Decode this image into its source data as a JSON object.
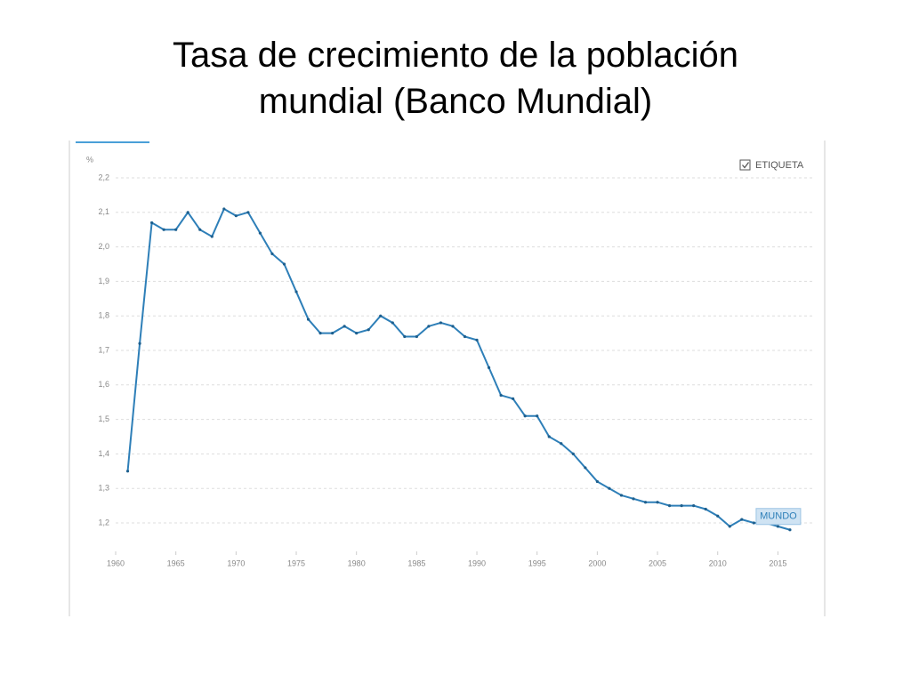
{
  "chart_data": {
    "type": "line",
    "title": "Tasa de crecimiento de la población mundial (Banco Mundial)",
    "y_unit": "%",
    "toggle_label": "ETIQUETA",
    "x": [
      1961,
      1962,
      1963,
      1964,
      1965,
      1966,
      1967,
      1968,
      1969,
      1970,
      1971,
      1972,
      1973,
      1974,
      1975,
      1976,
      1977,
      1978,
      1979,
      1980,
      1981,
      1982,
      1983,
      1984,
      1985,
      1986,
      1987,
      1988,
      1989,
      1990,
      1991,
      1992,
      1993,
      1994,
      1995,
      1996,
      1997,
      1998,
      1999,
      2000,
      2001,
      2002,
      2003,
      2004,
      2005,
      2006,
      2007,
      2008,
      2009,
      2010,
      2011,
      2012,
      2013,
      2014,
      2015,
      2016
    ],
    "series": [
      {
        "name": "MUNDO",
        "color": "#2e7fb8",
        "values": [
          1.35,
          1.72,
          2.07,
          2.05,
          2.05,
          2.1,
          2.05,
          2.03,
          2.11,
          2.09,
          2.1,
          2.04,
          1.98,
          1.95,
          1.87,
          1.79,
          1.75,
          1.75,
          1.77,
          1.75,
          1.76,
          1.8,
          1.78,
          1.74,
          1.74,
          1.77,
          1.78,
          1.77,
          1.74,
          1.73,
          1.65,
          1.57,
          1.56,
          1.51,
          1.51,
          1.45,
          1.43,
          1.4,
          1.36,
          1.32,
          1.3,
          1.28,
          1.27,
          1.26,
          1.26,
          1.25,
          1.25,
          1.25,
          1.24,
          1.22,
          1.19,
          1.21,
          1.2,
          1.2,
          1.19,
          1.18
        ]
      }
    ],
    "xlim": [
      1960,
      2018
    ],
    "xticks": [
      1960,
      1965,
      1970,
      1975,
      1980,
      1985,
      1990,
      1995,
      2000,
      2005,
      2010,
      2015
    ],
    "ylim": [
      1.12,
      2.2
    ],
    "yticks": [
      {
        "value": 1.2,
        "label": "1,2"
      },
      {
        "value": 1.3,
        "label": "1,3"
      },
      {
        "value": 1.4,
        "label": "1,4"
      },
      {
        "value": 1.5,
        "label": "1,5"
      },
      {
        "value": 1.6,
        "label": "1,6"
      },
      {
        "value": 1.7,
        "label": "1,7"
      },
      {
        "value": 1.8,
        "label": "1,8"
      },
      {
        "value": 1.9,
        "label": "1,9"
      },
      {
        "value": 2.0,
        "label": "2,0"
      },
      {
        "value": 2.1,
        "label": "2,1"
      },
      {
        "value": 2.2,
        "label": "2,2"
      }
    ],
    "grid": true
  }
}
